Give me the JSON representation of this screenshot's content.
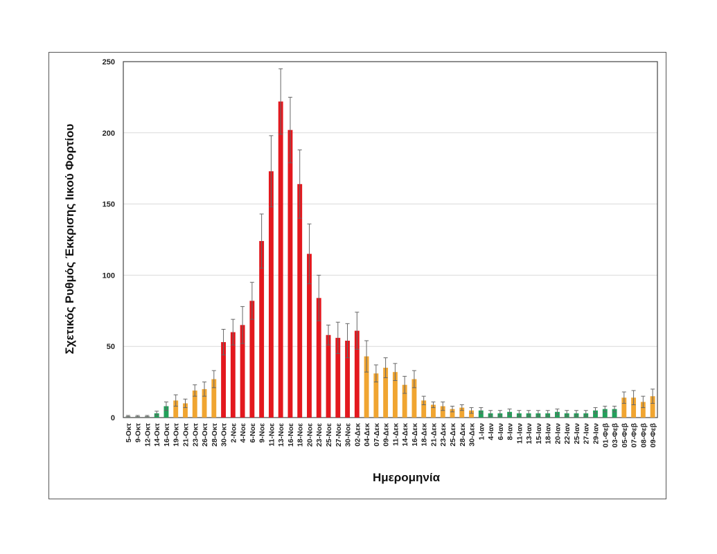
{
  "chart_data": {
    "type": "bar",
    "title": "",
    "xlabel": "Ημερομηνία",
    "ylabel": "Σχετικός Ρυθμός Έκκρισης Ιικού Φορτίου",
    "ylim": [
      0,
      250
    ],
    "yticks": [
      0,
      50,
      100,
      150,
      200,
      250
    ],
    "grid": "horizontal",
    "legend": "none",
    "colors": {
      "red": "#e3181e",
      "orange": "#f0a531",
      "green": "#22a05a",
      "gray": "#8a9a8f",
      "errorbar": "#666666"
    },
    "categories": [
      "5-Οκτ",
      "9-Οκτ",
      "12-Οκτ",
      "14-Οκτ",
      "16-Οκτ",
      "19-Οκτ",
      "21-Οκτ",
      "23-Οκτ",
      "26-Οκτ",
      "28-Οκτ",
      "30-Οκτ",
      "2-Νοε",
      "4-Νοε",
      "6-Νοε",
      "9-Νοε",
      "11-Νοε",
      "13-Νοε",
      "16-Νοε",
      "18-Νοε",
      "20-Νοε",
      "23-Νοε",
      "25-Νοε",
      "27-Νοε",
      "30-Νοε",
      "02-Δεκ",
      "04-Δεκ",
      "07-Δεκ",
      "09-Δεκ",
      "11-Δεκ",
      "14-Δεκ",
      "16-Δεκ",
      "18-Δεκ",
      "21-Δεκ",
      "23-Δεκ",
      "25-Δεκ",
      "28-Δεκ",
      "30-Δεκ",
      "1-Ιαν",
      "4-Ιαν",
      "6-Ιαν",
      "8-Ιαν",
      "11-Ιαν",
      "13-Ιαν",
      "15-Ιαν",
      "18-Ιαν",
      "20-Ιαν",
      "22-Ιαν",
      "25-Ιαν",
      "27-Ιαν",
      "29-Ιαν",
      "01-Φεβ",
      "03-Φεβ",
      "05-Φεβ",
      "07-Φεβ",
      "08-Φεβ",
      "09-Φεβ"
    ],
    "values": [
      1,
      1,
      1,
      3,
      8,
      12,
      10,
      19,
      20,
      27,
      53,
      60,
      65,
      82,
      124,
      173,
      222,
      202,
      164,
      115,
      84,
      58,
      56,
      54,
      61,
      43,
      31,
      35,
      32,
      23,
      27,
      12,
      9,
      8,
      6,
      7,
      5,
      5,
      3,
      3,
      4,
      3,
      3,
      3,
      3,
      4,
      3,
      3,
      3,
      5,
      6,
      6,
      14,
      14,
      11,
      15
    ],
    "errors": [
      0.5,
      0.5,
      0.5,
      1.5,
      3,
      4,
      3,
      4,
      5,
      6,
      9,
      9,
      13,
      13,
      19,
      25,
      23,
      23,
      24,
      21,
      16,
      7,
      11,
      12,
      13,
      11,
      6,
      7,
      6,
      6,
      6,
      3,
      2,
      3,
      2,
      2,
      2,
      2,
      2,
      2,
      2,
      2,
      2,
      2,
      2,
      2,
      2,
      2,
      2,
      2,
      2,
      2,
      4,
      5,
      4,
      5
    ],
    "bar_colors": [
      "gray",
      "gray",
      "gray",
      "green",
      "green",
      "orange",
      "orange",
      "orange",
      "orange",
      "orange",
      "red",
      "red",
      "red",
      "red",
      "red",
      "red",
      "red",
      "red",
      "red",
      "red",
      "red",
      "red",
      "red",
      "red",
      "red",
      "orange",
      "orange",
      "orange",
      "orange",
      "orange",
      "orange",
      "orange",
      "orange",
      "orange",
      "orange",
      "orange",
      "orange",
      "green",
      "green",
      "green",
      "green",
      "green",
      "green",
      "green",
      "green",
      "green",
      "green",
      "green",
      "green",
      "green",
      "green",
      "green",
      "orange",
      "orange",
      "orange",
      "orange"
    ]
  }
}
